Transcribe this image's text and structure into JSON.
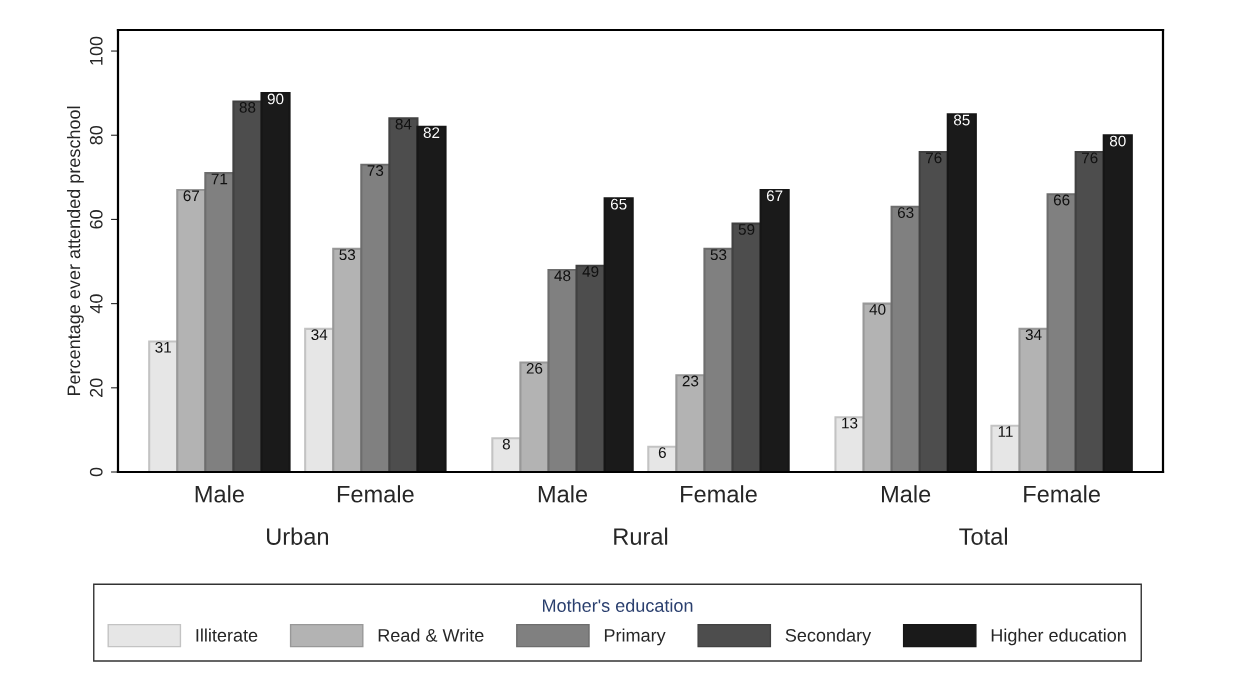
{
  "chart_data": {
    "type": "bar",
    "ylabel": "Percentage ever attended preschool",
    "legend_title": "Mother's education",
    "categories": [
      "Male",
      "Female",
      "Male",
      "Female",
      "Male",
      "Female"
    ],
    "annotations": [
      "Urban",
      "Rural",
      "Total"
    ],
    "series": [
      {
        "name": "Illiterate",
        "color": "#e6e6e6",
        "values": [
          31,
          34,
          8,
          6,
          13,
          11
        ]
      },
      {
        "name": "Read & Write",
        "color": "#b3b3b3",
        "values": [
          67,
          53,
          26,
          23,
          40,
          34
        ]
      },
      {
        "name": "Primary",
        "color": "#808080",
        "values": [
          71,
          73,
          48,
          53,
          63,
          66
        ]
      },
      {
        "name": "Secondary",
        "color": "#4d4d4d",
        "values": [
          88,
          84,
          49,
          59,
          76,
          76
        ]
      },
      {
        "name": "Higher education",
        "color": "#1a1a1a",
        "values": [
          90,
          82,
          65,
          67,
          85,
          80
        ]
      }
    ],
    "ylim": [
      0,
      105
    ],
    "yticks": [
      0,
      20,
      40,
      60,
      80,
      100
    ],
    "grid": false,
    "legend": "bottom",
    "data_labels": true
  }
}
